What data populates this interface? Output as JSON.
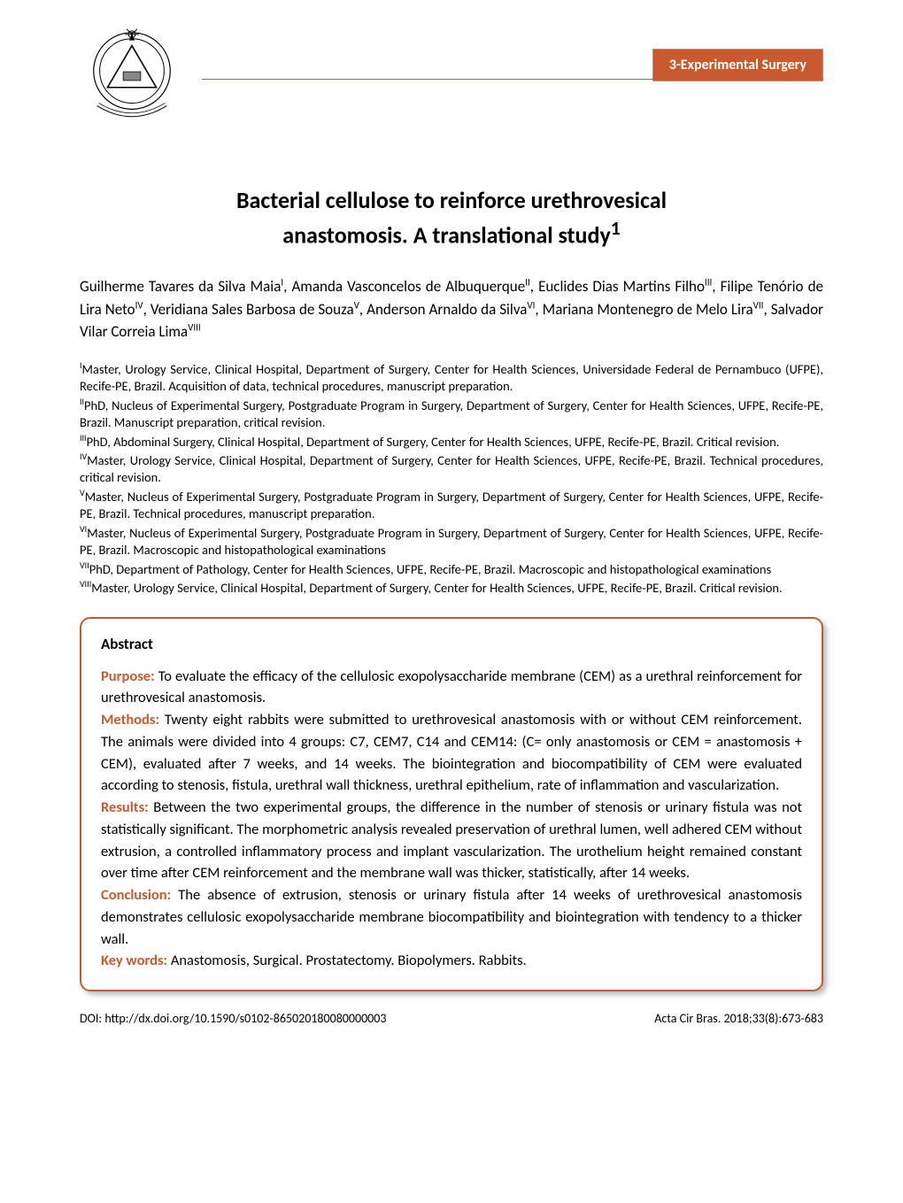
{
  "header": {
    "section_label": "3-Experimental Surgery",
    "badge_bg": "#c85a2e",
    "badge_fg": "#ffffff",
    "rule_color": "#c85a2e"
  },
  "title": {
    "line1": "Bacterial cellulose to reinforce urethrovesical",
    "line2": "anastomosis. A translational study",
    "superscript": "1"
  },
  "authors": [
    {
      "name": "Guilherme Tavares da Silva Maia",
      "sup": "I"
    },
    {
      "name": "Amanda Vasconcelos de Albuquerque",
      "sup": "II"
    },
    {
      "name": "Euclides Dias Martins Filho",
      "sup": "III"
    },
    {
      "name": "Filipe Tenório de Lira Neto",
      "sup": "IV"
    },
    {
      "name": "Veridiana Sales Barbosa de Souza",
      "sup": "V"
    },
    {
      "name": "Anderson Arnaldo da Silva",
      "sup": "VI"
    },
    {
      "name": "Mariana Montenegro de Melo Lira",
      "sup": "VII"
    },
    {
      "name": "Salvador Vilar Correia Lima",
      "sup": "VIII"
    }
  ],
  "affiliations": [
    {
      "sup": "I",
      "text": "Master, Urology Service, Clinical Hospital, Department of Surgery, Center for Health Sciences, Universidade Federal de Pernambuco (UFPE), Recife-PE, Brazil. Acquisition of data, technical procedures, manuscript preparation."
    },
    {
      "sup": "II",
      "text": "PhD, Nucleus of Experimental Surgery, Postgraduate Program in Surgery, Department of Surgery, Center for Health Sciences, UFPE, Recife-PE, Brazil. Manuscript preparation, critical revision."
    },
    {
      "sup": "III",
      "text": "PhD, Abdominal Surgery, Clinical Hospital, Department of Surgery, Center for Health Sciences, UFPE, Recife-PE, Brazil. Critical revision."
    },
    {
      "sup": "IV",
      "text": "Master, Urology Service, Clinical Hospital, Department of Surgery, Center for Health Sciences, UFPE, Recife-PE, Brazil. Technical procedures, critical revision."
    },
    {
      "sup": "V",
      "text": "Master, Nucleus of Experimental Surgery, Postgraduate Program in Surgery, Department of Surgery, Center for Health Sciences, UFPE, Recife-PE, Brazil. Technical procedures, manuscript preparation."
    },
    {
      "sup": "VI",
      "text": "Master, Nucleus of Experimental Surgery, Postgraduate Program in Surgery, Department of Surgery, Center for Health Sciences, UFPE, Recife-PE, Brazil. Macroscopic and histopathological examinations"
    },
    {
      "sup": "VII",
      "text": "PhD, Department of Pathology, Center for Health Sciences, UFPE, Recife-PE, Brazil. Macroscopic and histopathological examinations"
    },
    {
      "sup": "VIII",
      "text": "Master, Urology Service, Clinical Hospital, Department of Surgery, Center for Health Sciences, UFPE, Recife-PE, Brazil. Critical revision."
    }
  ],
  "abstract": {
    "heading": "Abstract",
    "label_color": "#c85a2e",
    "border_color": "#c85a2e",
    "sections": {
      "purpose_label": "Purpose:",
      "purpose_text": " To evaluate the efficacy of the cellulosic exopolysaccharide membrane (CEM) as a urethral reinforcement for urethrovesical anastomosis.",
      "methods_label": "Methods:",
      "methods_text": " Twenty eight rabbits were submitted to urethrovesical anastomosis with or without CEM reinforcement. The animals were divided into 4 groups: C7, CEM7, C14 and CEM14: (C= only anastomosis or CEM = anastomosis + CEM), evaluated after 7 weeks, and 14 weeks. The biointegration and biocompatibility of CEM were evaluated according to stenosis, fistula, urethral wall thickness, urethral epithelium, rate of inflammation and vascularization.",
      "results_label": "Results:",
      "results_text": " Between the two experimental groups, the difference in the number of stenosis or urinary fistula was not statistically significant. The morphometric analysis revealed preservation of urethral lumen, well adhered CEM without extrusion, a controlled inflammatory process and implant vascularization. The urothelium height remained constant over time after CEM reinforcement and the membrane wall was thicker, statistically, after 14 weeks.",
      "conclusion_label": "Conclusion:",
      "conclusion_text": " The absence of extrusion, stenosis or urinary fistula after 14 weeks of urethrovesical anastomosis demonstrates cellulosic exopolysaccharide membrane biocompatibility and biointegration with tendency to a thicker wall.",
      "keywords_label": "Key words:",
      "keywords_text": " Anastomosis, Surgical. Prostatectomy. Biopolymers. Rabbits."
    }
  },
  "footer": {
    "doi_prefix": "DOI: ",
    "doi_url": "http://dx.doi.org/10.1590/s0102-865020180080000003",
    "citation": "Acta Cir Bras. 2018;33(8):673-683"
  }
}
